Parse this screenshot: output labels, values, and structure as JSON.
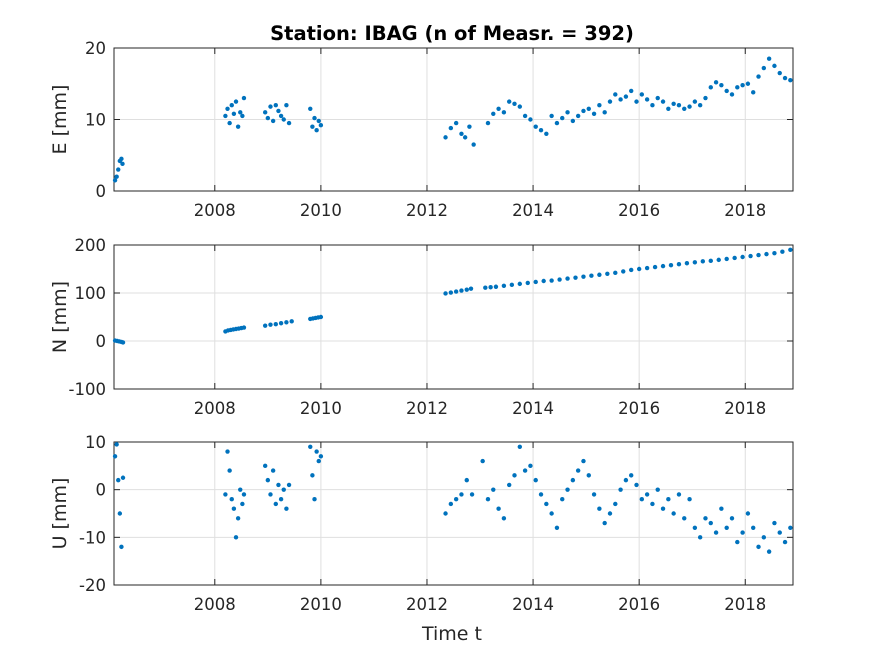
{
  "chart_data": {
    "type": "scatter",
    "title": "Station: IBAG (n of Measr. = 392)",
    "xlabel": "Time t",
    "xlim": [
      2006.1,
      2018.9
    ],
    "xticks": [
      2008,
      2010,
      2012,
      2014,
      2016,
      2018
    ],
    "grid": true,
    "marker_color": "#0072bd",
    "panels": [
      {
        "name": "E",
        "ylabel": "E [mm]",
        "ylim": [
          0,
          20
        ],
        "yticks": [
          0,
          10,
          20
        ],
        "x": [
          2006.12,
          2006.15,
          2006.18,
          2006.21,
          2006.24,
          2006.26,
          2008.2,
          2008.24,
          2008.28,
          2008.32,
          2008.36,
          2008.4,
          2008.44,
          2008.48,
          2008.52,
          2008.55,
          2008.95,
          2009.0,
          2009.05,
          2009.1,
          2009.15,
          2009.2,
          2009.25,
          2009.3,
          2009.35,
          2009.4,
          2009.8,
          2009.84,
          2009.88,
          2009.92,
          2009.96,
          2010.0,
          2012.35,
          2012.45,
          2012.55,
          2012.65,
          2012.72,
          2012.8,
          2012.88,
          2013.15,
          2013.25,
          2013.35,
          2013.45,
          2013.55,
          2013.65,
          2013.75,
          2013.85,
          2013.95,
          2014.05,
          2014.15,
          2014.25,
          2014.35,
          2014.45,
          2014.55,
          2014.65,
          2014.75,
          2014.85,
          2014.95,
          2015.05,
          2015.15,
          2015.25,
          2015.35,
          2015.45,
          2015.55,
          2015.65,
          2015.75,
          2015.85,
          2015.95,
          2016.05,
          2016.15,
          2016.25,
          2016.35,
          2016.45,
          2016.55,
          2016.65,
          2016.75,
          2016.85,
          2016.95,
          2017.05,
          2017.15,
          2017.25,
          2017.35,
          2017.45,
          2017.55,
          2017.65,
          2017.75,
          2017.85,
          2017.95,
          2018.05,
          2018.15,
          2018.25,
          2018.35,
          2018.45,
          2018.55,
          2018.65,
          2018.75,
          2018.85
        ],
        "y": [
          1.5,
          2.0,
          3.0,
          4.2,
          4.5,
          3.8,
          10.5,
          11.5,
          9.5,
          12.0,
          10.8,
          12.5,
          9.0,
          11.0,
          10.5,
          13.0,
          11.0,
          10.2,
          11.8,
          9.8,
          12.0,
          11.2,
          10.5,
          10.0,
          12.0,
          9.5,
          11.5,
          9.0,
          10.2,
          8.5,
          9.8,
          9.2,
          7.5,
          8.8,
          9.5,
          8.0,
          7.5,
          9.0,
          6.5,
          9.5,
          10.8,
          11.5,
          11.0,
          12.5,
          12.2,
          11.8,
          10.5,
          10.0,
          9.0,
          8.5,
          8.0,
          10.5,
          9.5,
          10.2,
          11.0,
          9.8,
          10.5,
          11.2,
          11.5,
          10.8,
          12.0,
          11.0,
          12.5,
          13.5,
          12.8,
          13.2,
          14.0,
          12.5,
          13.5,
          12.8,
          12.0,
          13.0,
          12.5,
          11.5,
          12.2,
          12.0,
          11.5,
          11.8,
          12.5,
          12.0,
          13.0,
          14.5,
          15.2,
          14.8,
          14.0,
          13.5,
          14.5,
          14.8,
          15.0,
          13.8,
          16.0,
          17.2,
          18.5,
          17.5,
          16.5,
          15.8,
          15.5
        ]
      },
      {
        "name": "N",
        "ylabel": "N [mm]",
        "ylim": [
          -100,
          200
        ],
        "yticks": [
          -100,
          0,
          100,
          200
        ],
        "x": [
          2006.12,
          2006.16,
          2006.2,
          2006.24,
          2006.27,
          2008.2,
          2008.25,
          2008.3,
          2008.35,
          2008.4,
          2008.45,
          2008.5,
          2008.55,
          2008.95,
          2009.05,
          2009.15,
          2009.25,
          2009.35,
          2009.45,
          2009.8,
          2009.85,
          2009.9,
          2009.95,
          2010.0,
          2012.35,
          2012.45,
          2012.55,
          2012.65,
          2012.75,
          2012.83,
          2013.1,
          2013.2,
          2013.3,
          2013.45,
          2013.6,
          2013.75,
          2013.9,
          2014.05,
          2014.2,
          2014.35,
          2014.5,
          2014.65,
          2014.8,
          2014.95,
          2015.1,
          2015.25,
          2015.4,
          2015.55,
          2015.7,
          2015.85,
          2016.0,
          2016.15,
          2016.3,
          2016.45,
          2016.6,
          2016.75,
          2016.9,
          2017.05,
          2017.2,
          2017.35,
          2017.5,
          2017.65,
          2017.8,
          2017.95,
          2018.1,
          2018.25,
          2018.4,
          2018.55,
          2018.7,
          2018.85
        ],
        "y": [
          1,
          0,
          -1,
          -2,
          -3,
          20,
          22,
          23,
          24,
          25,
          26,
          27,
          28,
          32,
          34,
          35,
          37,
          39,
          41,
          46,
          47,
          48,
          49,
          50,
          99,
          101,
          103,
          105,
          107,
          109,
          111,
          112,
          113,
          115,
          117,
          119,
          121,
          123,
          125,
          126,
          128,
          130,
          132,
          134,
          136,
          138,
          140,
          142,
          145,
          148,
          150,
          152,
          154,
          156,
          158,
          160,
          162,
          164,
          166,
          167,
          169,
          171,
          173,
          175,
          177,
          179,
          181,
          183,
          186,
          190
        ]
      },
      {
        "name": "U",
        "ylabel": "U [mm]",
        "ylim": [
          -20,
          10
        ],
        "yticks": [
          -20,
          -10,
          0,
          10
        ],
        "x": [
          2006.12,
          2006.15,
          2006.18,
          2006.21,
          2006.24,
          2006.27,
          2008.2,
          2008.24,
          2008.28,
          2008.32,
          2008.36,
          2008.4,
          2008.44,
          2008.48,
          2008.52,
          2008.55,
          2008.95,
          2009.0,
          2009.05,
          2009.1,
          2009.15,
          2009.2,
          2009.25,
          2009.3,
          2009.35,
          2009.4,
          2009.8,
          2009.84,
          2009.88,
          2009.92,
          2009.96,
          2010.0,
          2012.35,
          2012.45,
          2012.55,
          2012.65,
          2012.75,
          2012.85,
          2013.05,
          2013.15,
          2013.25,
          2013.35,
          2013.45,
          2013.55,
          2013.65,
          2013.75,
          2013.85,
          2013.95,
          2014.05,
          2014.15,
          2014.25,
          2014.35,
          2014.45,
          2014.55,
          2014.65,
          2014.75,
          2014.85,
          2014.95,
          2015.05,
          2015.15,
          2015.25,
          2015.35,
          2015.45,
          2015.55,
          2015.65,
          2015.75,
          2015.85,
          2015.95,
          2016.05,
          2016.15,
          2016.25,
          2016.35,
          2016.45,
          2016.55,
          2016.65,
          2016.75,
          2016.85,
          2016.95,
          2017.05,
          2017.15,
          2017.25,
          2017.35,
          2017.45,
          2017.55,
          2017.65,
          2017.75,
          2017.85,
          2017.95,
          2018.05,
          2018.15,
          2018.25,
          2018.35,
          2018.45,
          2018.55,
          2018.65,
          2018.75,
          2018.85
        ],
        "y": [
          7,
          9.5,
          2,
          -5,
          -12,
          2.5,
          -1,
          8,
          4,
          -2,
          -4,
          -10,
          -6,
          0,
          -3,
          -1,
          5,
          2,
          -1,
          4,
          -3,
          1,
          -2,
          0,
          -4,
          1,
          9,
          3,
          -2,
          8,
          6,
          7,
          -5,
          -3,
          -2,
          -1,
          2,
          -1,
          6,
          -2,
          0,
          -4,
          -6,
          1,
          3,
          9,
          4,
          5,
          2,
          -1,
          -3,
          -5,
          -8,
          -2,
          0,
          2,
          4,
          6,
          3,
          -1,
          -4,
          -7,
          -5,
          -3,
          0,
          2,
          3,
          1,
          -2,
          -1,
          -3,
          0,
          -4,
          -2,
          -5,
          -1,
          -6,
          -2,
          -8,
          -10,
          -6,
          -7,
          -9,
          -4,
          -8,
          -6,
          -11,
          -9,
          -5,
          -8,
          -12,
          -10,
          -13,
          -7,
          -9,
          -11,
          -8
        ]
      }
    ]
  }
}
